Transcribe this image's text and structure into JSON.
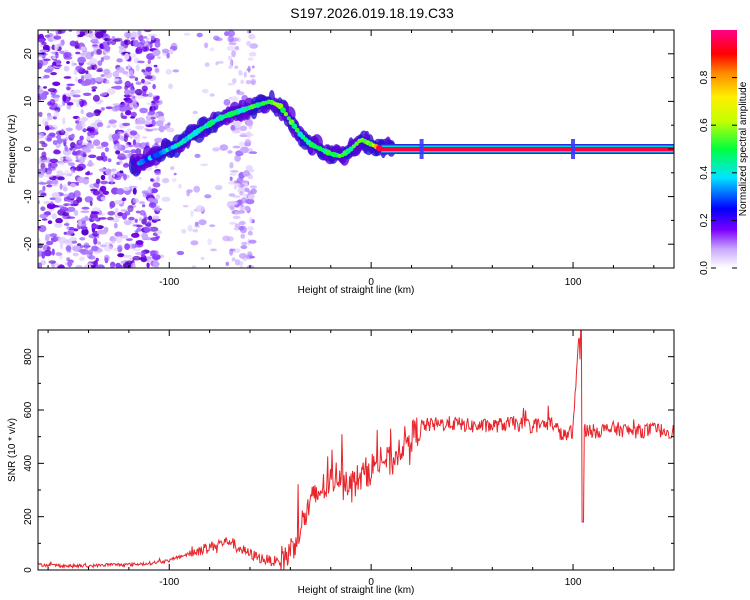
{
  "title": "S197.2026.019.18.19.C33",
  "chart_data": [
    {
      "type": "heatmap",
      "name": "spectrogram",
      "xlabel": "Height of straight line (km)",
      "ylabel": "Frequency (Hz)",
      "xlim": [
        -165,
        150
      ],
      "ylim": [
        -25,
        25
      ],
      "xticks": [
        -100,
        0,
        100
      ],
      "yticks": [
        -20,
        -10,
        0,
        10,
        20
      ],
      "colorbar": {
        "label": "Normalized spectral amplitude",
        "range": [
          0,
          1
        ],
        "ticks": [
          0.0,
          0.2,
          0.4,
          0.6,
          0.8
        ],
        "colors": [
          "#ffffff",
          "#7b00ff",
          "#0000ff",
          "#00e5ff",
          "#00ff00",
          "#ffff00",
          "#ff9900",
          "#ff0000",
          "#ff0080"
        ]
      },
      "ridge": {
        "x": [
          -115,
          -105,
          -95,
          -85,
          -75,
          -65,
          -58,
          -50,
          -45,
          -40,
          -35,
          -30,
          -25,
          -20,
          -15,
          -10,
          -5,
          0,
          5,
          10,
          25,
          100,
          150
        ],
        "freq": [
          -3,
          -1,
          1,
          4,
          6.5,
          8,
          9,
          10,
          9,
          6,
          3,
          1,
          0,
          -1,
          -1.5,
          0,
          2,
          1,
          0,
          0,
          0,
          0,
          0
        ],
        "amplitude": [
          0.3,
          0.35,
          0.4,
          0.45,
          0.45,
          0.45,
          0.5,
          0.55,
          0.55,
          0.5,
          0.45,
          0.45,
          0.5,
          0.5,
          0.5,
          0.5,
          0.55,
          0.6,
          0.95,
          0.95,
          0.95,
          0.95,
          0.95
        ]
      }
    },
    {
      "type": "line",
      "name": "snr",
      "xlabel": "Height of straight line (km)",
      "ylabel": "SNR (10 * v/v)",
      "xlim": [
        -165,
        150
      ],
      "ylim": [
        0,
        900
      ],
      "xticks": [
        -100,
        0,
        100
      ],
      "yticks": [
        0,
        200,
        400,
        600,
        800
      ],
      "color": "#e8252b",
      "series": [
        {
          "name": "SNR",
          "x": [
            -165,
            -150,
            -140,
            -130,
            -120,
            -110,
            -100,
            -95,
            -90,
            -85,
            -80,
            -75,
            -70,
            -65,
            -60,
            -55,
            -50,
            -45,
            -40,
            -35,
            -30,
            -25,
            -20,
            -15,
            -10,
            -5,
            0,
            5,
            10,
            15,
            20,
            25,
            30,
            40,
            50,
            60,
            70,
            80,
            90,
            95,
            100,
            103,
            105,
            110,
            120,
            130,
            140,
            150
          ],
          "y": [
            20,
            15,
            15,
            20,
            20,
            25,
            35,
            50,
            60,
            75,
            85,
            100,
            110,
            80,
            60,
            45,
            35,
            30,
            70,
            160,
            250,
            300,
            330,
            370,
            320,
            350,
            380,
            420,
            400,
            470,
            500,
            540,
            545,
            550,
            540,
            540,
            550,
            540,
            550,
            500,
            520,
            900,
            530,
            520,
            530,
            520,
            525,
            520
          ]
        }
      ],
      "features": [
        {
          "x": 104,
          "y": 900,
          "kind": "spike"
        },
        {
          "x": 104,
          "y": 180,
          "kind": "dip"
        }
      ]
    }
  ]
}
